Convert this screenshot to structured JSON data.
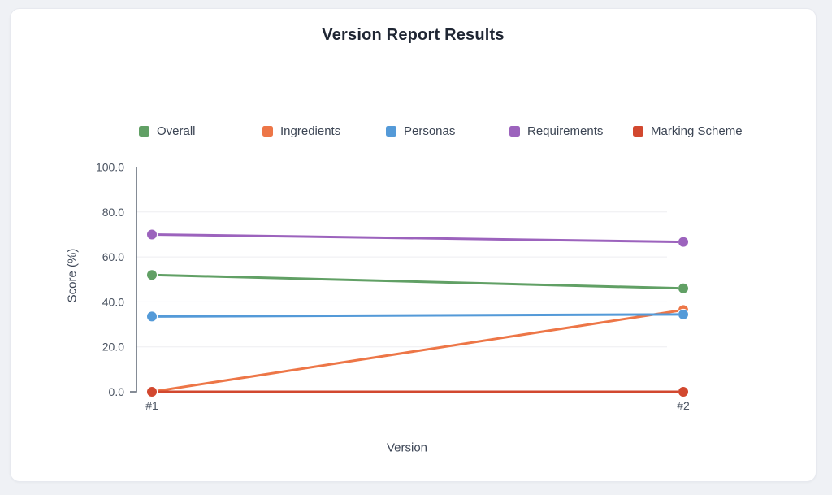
{
  "chart_data": {
    "type": "line",
    "title": "Version Report Results",
    "xlabel": "Version",
    "ylabel": "Score (%)",
    "categories": [
      "#1",
      "#2"
    ],
    "series": [
      {
        "name": "Overall",
        "color": "#61a065",
        "values": [
          52.0,
          46.0
        ]
      },
      {
        "name": "Ingredients",
        "color": "#ed7647",
        "values": [
          0.0,
          36.4
        ]
      },
      {
        "name": "Personas",
        "color": "#549ad8",
        "values": [
          33.5,
          34.4
        ]
      },
      {
        "name": "Requirements",
        "color": "#9c63bd",
        "values": [
          70.0,
          66.7
        ]
      },
      {
        "name": "Marking Scheme",
        "color": "#d2482f",
        "values": [
          0.0,
          0.0
        ]
      }
    ],
    "ylim": [
      0,
      100
    ],
    "yticks": [
      0,
      20,
      40,
      60,
      80,
      100
    ],
    "ytick_labels": [
      "0.0",
      "20.0",
      "40.0",
      "60.0",
      "80.0",
      "100.0"
    ],
    "grid": true,
    "legend_position": "top",
    "colors": {
      "grid": "#ededf1",
      "axis": "#5d6673",
      "tick_text": "#4b5462",
      "point_border": "#ffffff"
    }
  }
}
